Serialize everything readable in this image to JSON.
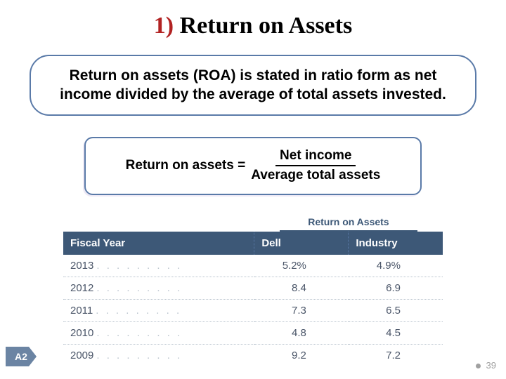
{
  "title": {
    "num": "1)",
    "text": "Return on Assets"
  },
  "definition": "Return on assets (ROA) is stated in ratio form as net income divided by the average of total assets invested.",
  "formula": {
    "lhs": "Return on assets  =",
    "numerator": "Net income",
    "denominator": "Average total assets"
  },
  "table": {
    "super_header": "Return on Assets",
    "columns": [
      "Fiscal Year",
      "Dell",
      "Industry"
    ],
    "rows": [
      {
        "year": "2013",
        "dell": "5.2%",
        "industry": "4.9%"
      },
      {
        "year": "2012",
        "dell": "8.4",
        "industry": "6.9"
      },
      {
        "year": "2011",
        "dell": "7.3",
        "industry": "6.5"
      },
      {
        "year": "2010",
        "dell": "4.8",
        "industry": "4.5"
      },
      {
        "year": "2009",
        "dell": "9.2",
        "industry": "7.2"
      }
    ],
    "header_bg": "#3d5877",
    "header_fg": "#ffffff",
    "row_fg": "#4a5568"
  },
  "badge": "A2",
  "page_number": "39"
}
